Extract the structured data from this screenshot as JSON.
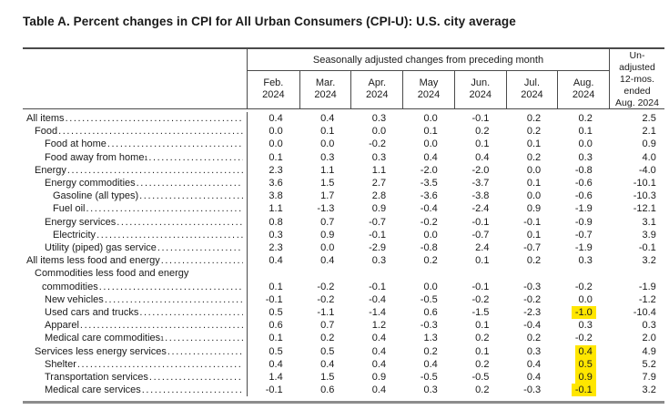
{
  "title": "Table A. Percent changes in CPI for All Urban Consumers (CPI-U): U.S. city average",
  "colors": {
    "highlight": "#ffe600",
    "rule": "#4a4a4a",
    "bottom_rule": "#8c8c8c",
    "text": "#1a1a1a"
  },
  "table": {
    "spanner": "Seasonally adjusted changes from preceding month",
    "unadjusted_lines": [
      "Un-",
      "adjusted",
      "12-mos.",
      "ended",
      "Aug. 2024"
    ],
    "columns": [
      {
        "month": "Feb.",
        "year": "2024"
      },
      {
        "month": "Mar.",
        "year": "2024"
      },
      {
        "month": "Apr.",
        "year": "2024"
      },
      {
        "month": "May",
        "year": "2024"
      },
      {
        "month": "Jun.",
        "year": "2024"
      },
      {
        "month": "Jul.",
        "year": "2024"
      },
      {
        "month": "Aug.",
        "year": "2024"
      }
    ],
    "rows": [
      {
        "label": "All items",
        "indent": 0,
        "values": [
          "0.4",
          "0.4",
          "0.3",
          "0.0",
          "-0.1",
          "0.2",
          "0.2"
        ],
        "annual": "2.5",
        "highlight_aug": false
      },
      {
        "label": "Food",
        "indent": 1,
        "values": [
          "0.0",
          "0.1",
          "0.0",
          "0.1",
          "0.2",
          "0.2",
          "0.1"
        ],
        "annual": "2.1",
        "highlight_aug": false
      },
      {
        "label": "Food at home",
        "indent": 2,
        "values": [
          "0.0",
          "0.0",
          "-0.2",
          "0.0",
          "0.1",
          "0.1",
          "0.0"
        ],
        "annual": "0.9",
        "highlight_aug": false
      },
      {
        "label": "Food away from home",
        "sup": "1",
        "indent": 2,
        "values": [
          "0.1",
          "0.3",
          "0.3",
          "0.4",
          "0.4",
          "0.2",
          "0.3"
        ],
        "annual": "4.0",
        "highlight_aug": false
      },
      {
        "label": "Energy",
        "indent": 1,
        "values": [
          "2.3",
          "1.1",
          "1.1",
          "-2.0",
          "-2.0",
          "0.0",
          "-0.8"
        ],
        "annual": "-4.0",
        "highlight_aug": false
      },
      {
        "label": "Energy commodities",
        "indent": 2,
        "values": [
          "3.6",
          "1.5",
          "2.7",
          "-3.5",
          "-3.7",
          "0.1",
          "-0.6"
        ],
        "annual": "-10.1",
        "highlight_aug": false
      },
      {
        "label": "Gasoline (all types)",
        "indent": 3,
        "values": [
          "3.8",
          "1.7",
          "2.8",
          "-3.6",
          "-3.8",
          "0.0",
          "-0.6"
        ],
        "annual": "-10.3",
        "highlight_aug": false
      },
      {
        "label": "Fuel oil",
        "indent": 3,
        "values": [
          "1.1",
          "-1.3",
          "0.9",
          "-0.4",
          "-2.4",
          "0.9",
          "-1.9"
        ],
        "annual": "-12.1",
        "highlight_aug": false
      },
      {
        "label": "Energy services",
        "indent": 2,
        "values": [
          "0.8",
          "0.7",
          "-0.7",
          "-0.2",
          "-0.1",
          "-0.1",
          "-0.9"
        ],
        "annual": "3.1",
        "highlight_aug": false
      },
      {
        "label": "Electricity",
        "indent": 3,
        "values": [
          "0.3",
          "0.9",
          "-0.1",
          "0.0",
          "-0.7",
          "0.1",
          "-0.7"
        ],
        "annual": "3.9",
        "highlight_aug": false
      },
      {
        "label": "Utility (piped) gas service",
        "indent": 2,
        "values": [
          "2.3",
          "0.0",
          "-2.9",
          "-0.8",
          "2.4",
          "-0.7",
          "-1.9"
        ],
        "annual": "-0.1",
        "highlight_aug": false
      },
      {
        "label": "All items less food and energy",
        "indent": 0,
        "values": [
          "0.4",
          "0.4",
          "0.3",
          "0.2",
          "0.1",
          "0.2",
          "0.3"
        ],
        "annual": "3.2",
        "highlight_aug": false
      },
      {
        "label": "Commodities less food and energy",
        "label2": "commodities",
        "indent": 1,
        "values": [
          "0.1",
          "-0.2",
          "-0.1",
          "0.0",
          "-0.1",
          "-0.3",
          "-0.2"
        ],
        "annual": "-1.9",
        "highlight_aug": false
      },
      {
        "label": "New vehicles",
        "indent": 2,
        "values": [
          "-0.1",
          "-0.2",
          "-0.4",
          "-0.5",
          "-0.2",
          "-0.2",
          "0.0"
        ],
        "annual": "-1.2",
        "highlight_aug": false
      },
      {
        "label": "Used cars and trucks",
        "indent": 2,
        "values": [
          "0.5",
          "-1.1",
          "-1.4",
          "0.6",
          "-1.5",
          "-2.3",
          "-1.0"
        ],
        "annual": "-10.4",
        "highlight_aug": true
      },
      {
        "label": "Apparel",
        "indent": 2,
        "values": [
          "0.6",
          "0.7",
          "1.2",
          "-0.3",
          "0.1",
          "-0.4",
          "0.3"
        ],
        "annual": "0.3",
        "highlight_aug": false
      },
      {
        "label": "Medical care commodities",
        "sup": "1",
        "indent": 2,
        "values": [
          "0.1",
          "0.2",
          "0.4",
          "1.3",
          "0.2",
          "0.2",
          "-0.2"
        ],
        "annual": "2.0",
        "highlight_aug": false
      },
      {
        "label": "Services less energy services",
        "indent": 1,
        "values": [
          "0.5",
          "0.5",
          "0.4",
          "0.2",
          "0.1",
          "0.3",
          "0.4"
        ],
        "annual": "4.9",
        "highlight_aug": true
      },
      {
        "label": "Shelter",
        "indent": 2,
        "values": [
          "0.4",
          "0.4",
          "0.4",
          "0.4",
          "0.2",
          "0.4",
          "0.5"
        ],
        "annual": "5.2",
        "highlight_aug": true
      },
      {
        "label": "Transportation services",
        "indent": 2,
        "values": [
          "1.4",
          "1.5",
          "0.9",
          "-0.5",
          "-0.5",
          "0.4",
          "0.9"
        ],
        "annual": "7.9",
        "highlight_aug": true
      },
      {
        "label": "Medical care services",
        "indent": 2,
        "values": [
          "-0.1",
          "0.6",
          "0.4",
          "0.3",
          "0.2",
          "-0.3",
          "-0.1"
        ],
        "annual": "3.2",
        "highlight_aug": true
      }
    ]
  }
}
